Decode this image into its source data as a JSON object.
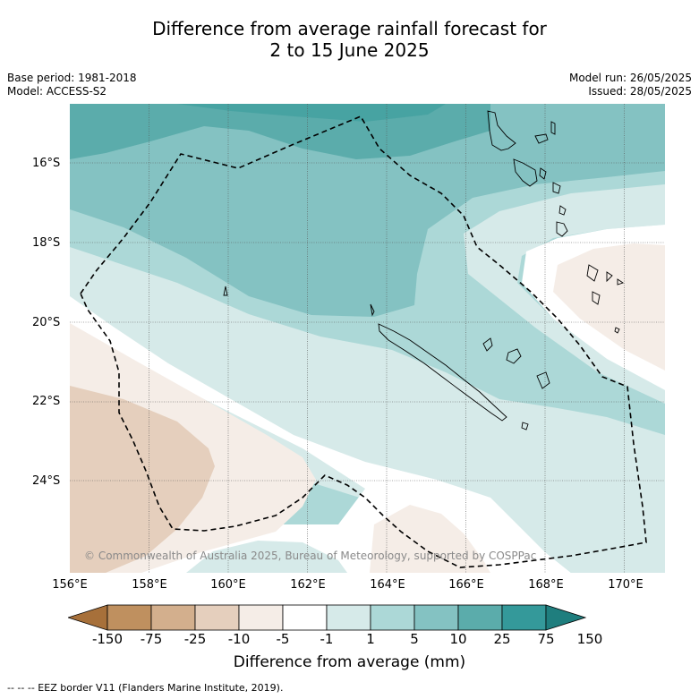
{
  "title_line1": "Difference from average rainfall forecast for",
  "title_line2": "2 to 15 June 2025",
  "meta_left": [
    "Base period: 1981-2018",
    "Model: ACCESS-S2"
  ],
  "meta_right": [
    "Model run: 26/05/2025",
    "Issued: 28/05/2025"
  ],
  "y_ticks": [
    "16°S",
    "18°S",
    "20°S",
    "22°S",
    "24°S"
  ],
  "x_ticks": [
    "156°E",
    "158°E",
    "160°E",
    "162°E",
    "164°E",
    "166°E",
    "168°E",
    "170°E"
  ],
  "credit": "© Commonwealth of Australia 2025, Bureau of Meteorology, supported by COSPPac",
  "colorbar": {
    "labels": [
      "-150",
      "-75",
      "-25",
      "-10",
      "-5",
      "-1",
      "1",
      "5",
      "10",
      "25",
      "75",
      "150"
    ],
    "colors": [
      "#a7703a",
      "#bf905f",
      "#d3af8d",
      "#e5cfbd",
      "#f5ede7",
      "#ffffff",
      "#d6eae9",
      "#acd8d7",
      "#84c2c2",
      "#5bacab",
      "#34999a",
      "#1f7e7e"
    ],
    "title": "Difference from average (mm)"
  },
  "footer": "--  --  -- EEZ border V11 (Flanders Marine Institute, 2019)."
}
